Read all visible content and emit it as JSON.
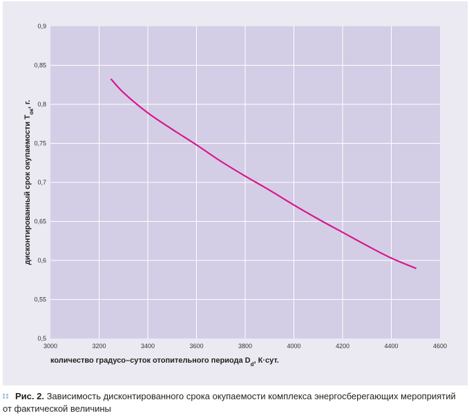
{
  "chart_data": {
    "type": "line",
    "title": "",
    "xlabel": "количество градусо–суток отопительного периода D",
    "xlabel_sub": "d",
    "xlabel_tail": ", К·сут.",
    "ylabel": "дисконтированный срок окупаемости T",
    "ylabel_sub": "ок",
    "ylabel_tail": ", г.",
    "xlim": [
      3000,
      4600
    ],
    "ylim": [
      0.5,
      0.9
    ],
    "x_ticks": [
      "3000",
      "3200",
      "3400",
      "3600",
      "3800",
      "4000",
      "4200",
      "4400",
      "4600"
    ],
    "y_ticks": [
      "0,5",
      "0,55",
      "0,6",
      "0,65",
      "0,7",
      "0,75",
      "0,8",
      "0,85",
      "0,9"
    ],
    "grid": true,
    "legend": "none",
    "series": [
      {
        "x": [
          3250,
          3300,
          3400,
          3500,
          3600,
          3700,
          3800,
          3900,
          4000,
          4100,
          4200,
          4300,
          4400,
          4500
        ],
        "y": [
          0.832,
          0.815,
          0.789,
          0.768,
          0.748,
          0.727,
          0.708,
          0.69,
          0.671,
          0.653,
          0.636,
          0.619,
          0.603,
          0.59
        ],
        "color": "#d6168e"
      }
    ]
  },
  "colors": {
    "plot_background": "#d4cde6",
    "panel_background": "#ebe9f1",
    "grid": "#ffffff",
    "line": "#d6168e",
    "caption_dots": "#a9c7dc"
  },
  "caption": {
    "label": "Рис. 2.",
    "text": " Зависимость дисконтированного срока окупаемости комплекса энергосберегающих мероприятий от фактической величины"
  }
}
